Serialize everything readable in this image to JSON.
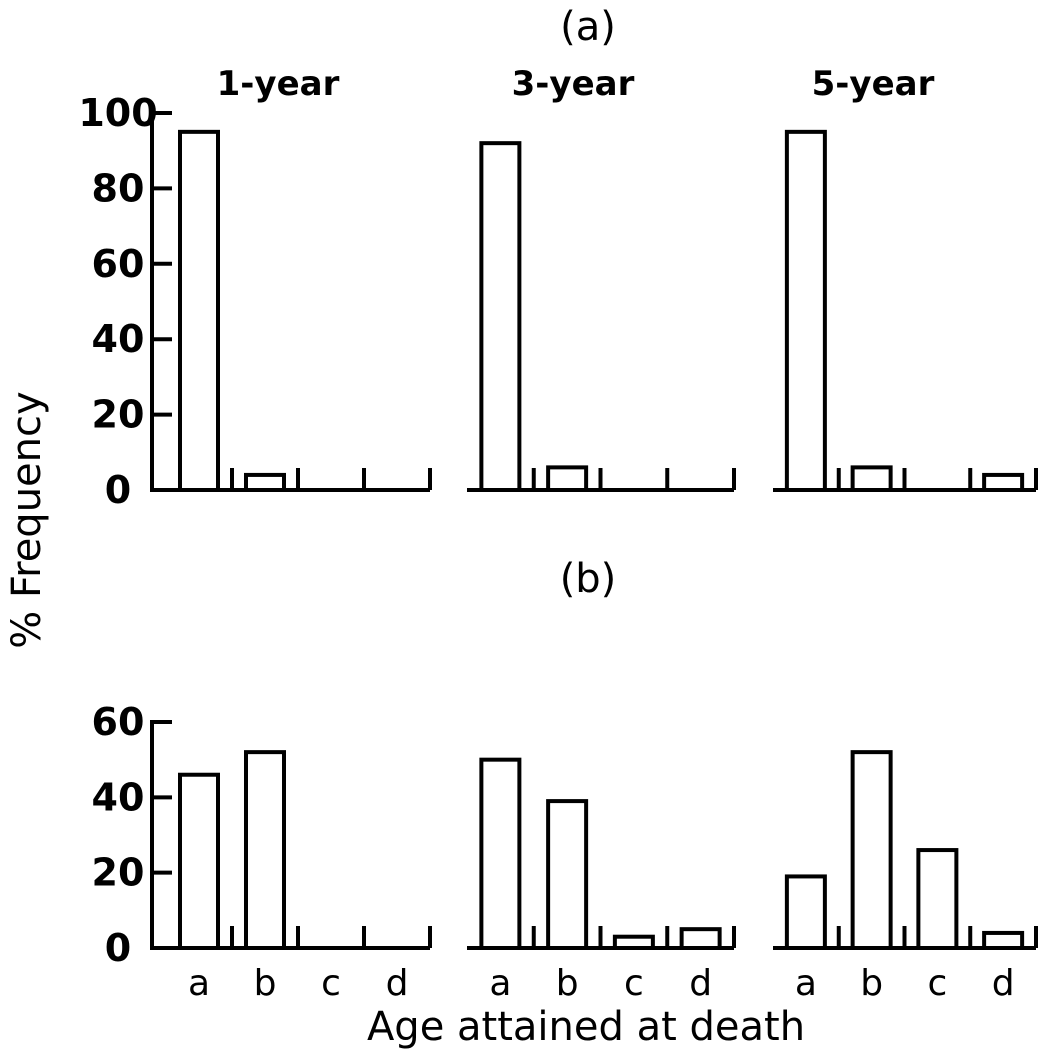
{
  "chart_data": {
    "type": "bar",
    "ylabel": "% Frequency",
    "xlabel": "Age attained at death",
    "categories": [
      "a",
      "b",
      "c",
      "d"
    ],
    "column_titles": [
      "1-year",
      "3-year",
      "5-year"
    ],
    "panels": [
      {
        "label": "(a)",
        "ylim": [
          0,
          100
        ],
        "yticks": [
          "100",
          "80",
          "60",
          "40",
          "20",
          "0"
        ],
        "groups": [
          {
            "values": [
              95,
              4,
              0,
              0
            ]
          },
          {
            "values": [
              92,
              6,
              0,
              0
            ]
          },
          {
            "values": [
              95,
              6,
              0,
              4
            ]
          }
        ]
      },
      {
        "label": "(b)",
        "ylim": [
          0,
          60
        ],
        "yticks": [
          "60",
          "40",
          "20",
          "0"
        ],
        "groups": [
          {
            "values": [
              46,
              52,
              0,
              0
            ]
          },
          {
            "values": [
              50,
              39,
              3,
              5
            ]
          },
          {
            "values": [
              19,
              52,
              26,
              4
            ]
          }
        ]
      }
    ]
  }
}
